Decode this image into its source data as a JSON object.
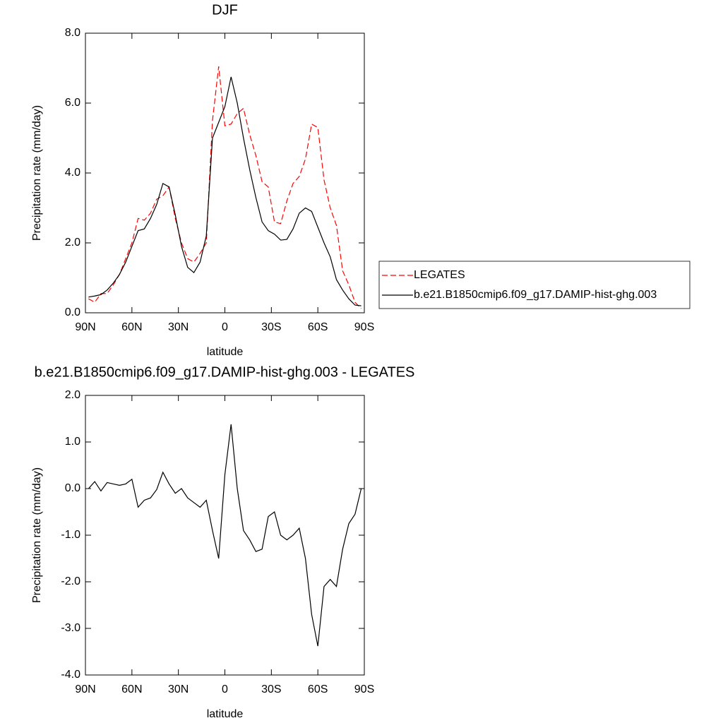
{
  "chart_data": [
    {
      "type": "line",
      "title": "DJF",
      "x_label": "latitude",
      "y_label": "Precipitation rate (mm/day)",
      "x": [
        88,
        84,
        80,
        76,
        72,
        68,
        64,
        60,
        56,
        52,
        48,
        44,
        40,
        36,
        32,
        28,
        24,
        20,
        16,
        12,
        8,
        4,
        0,
        -4,
        -8,
        -12,
        -16,
        -20,
        -24,
        -28,
        -32,
        -36,
        -40,
        -44,
        -48,
        -52,
        -56,
        -60,
        -64,
        -68,
        -72,
        -76,
        -80,
        -84,
        -88
      ],
      "xlim": [
        90,
        -90
      ],
      "xticks": [
        {
          "value": 90,
          "label": "90N"
        },
        {
          "value": 60,
          "label": "60N"
        },
        {
          "value": 30,
          "label": "30N"
        },
        0,
        {
          "value": -30,
          "label": "30S"
        },
        {
          "value": -60,
          "label": "60S"
        },
        {
          "value": -90,
          "label": "90S"
        }
      ],
      "ylim": [
        0,
        8
      ],
      "yticks": [
        {
          "value": 0,
          "label": "0.0"
        },
        {
          "value": 2,
          "label": "2.0"
        },
        {
          "value": 4,
          "label": "4.0"
        },
        {
          "value": 6,
          "label": "6.0"
        },
        {
          "value": 8,
          "label": "8.0"
        }
      ],
      "legend": "right",
      "series": [
        {
          "name": "LEGATES",
          "color": "#ff0000",
          "dash": "dashed",
          "values": [
            0.4,
            0.3,
            0.55,
            0.55,
            0.8,
            1.1,
            1.55,
            2.0,
            2.7,
            2.65,
            2.85,
            3.25,
            3.35,
            3.6,
            2.7,
            2.0,
            1.55,
            1.45,
            1.7,
            2.0,
            5.5,
            7.05,
            5.35,
            5.4,
            5.7,
            5.85,
            5.1,
            4.5,
            3.75,
            3.6,
            2.6,
            2.55,
            3.2,
            3.7,
            3.9,
            4.4,
            5.4,
            5.3,
            3.8,
            3.0,
            2.5,
            1.2,
            0.8,
            0.3,
            0.12
          ]
        },
        {
          "name": "b.e21.B1850cmip6.f09_g17.DAMIP-hist-ghg.003",
          "color": "#000000",
          "dash": "solid",
          "values": [
            0.45,
            0.48,
            0.52,
            0.65,
            0.85,
            1.1,
            1.45,
            1.9,
            2.35,
            2.4,
            2.7,
            3.1,
            3.7,
            3.6,
            2.8,
            1.9,
            1.3,
            1.15,
            1.45,
            2.2,
            5.0,
            5.45,
            5.9,
            6.75,
            6.0,
            5.0,
            4.1,
            3.3,
            2.6,
            2.35,
            2.25,
            2.08,
            2.1,
            2.4,
            2.85,
            3.0,
            2.9,
            2.45,
            2.0,
            1.6,
            0.95,
            0.65,
            0.4,
            0.22,
            0.2
          ]
        }
      ]
    },
    {
      "type": "line",
      "title": "b.e21.B1850cmip6.f09_g17.DAMIP-hist-ghg.003 - LEGATES",
      "x_label": "latitude",
      "y_label": "Precipitation rate (mm/day)",
      "x": [
        88,
        84,
        80,
        76,
        72,
        68,
        64,
        60,
        56,
        52,
        48,
        44,
        40,
        36,
        32,
        28,
        24,
        20,
        16,
        12,
        8,
        4,
        0,
        -4,
        -8,
        -12,
        -16,
        -20,
        -24,
        -28,
        -32,
        -36,
        -40,
        -44,
        -48,
        -52,
        -56,
        -60,
        -64,
        -68,
        -72,
        -76,
        -80,
        -84,
        -88
      ],
      "xlim": [
        90,
        -90
      ],
      "xticks": [
        {
          "value": 90,
          "label": "90N"
        },
        {
          "value": 60,
          "label": "60N"
        },
        {
          "value": 30,
          "label": "30N"
        },
        0,
        {
          "value": -30,
          "label": "30S"
        },
        {
          "value": -60,
          "label": "60S"
        },
        {
          "value": -90,
          "label": "90S"
        }
      ],
      "ylim": [
        -4,
        2
      ],
      "yticks": [
        {
          "value": -4,
          "label": "-4.0"
        },
        {
          "value": -3,
          "label": "-3.0"
        },
        {
          "value": -2,
          "label": "-2.0"
        },
        {
          "value": -1,
          "label": "-1.0"
        },
        {
          "value": 0,
          "label": "0.0"
        },
        {
          "value": 1,
          "label": "1.0"
        },
        {
          "value": 2,
          "label": "2.0"
        }
      ],
      "color": "#000000",
      "values": [
        0.0,
        0.15,
        -0.05,
        0.13,
        0.1,
        0.07,
        0.1,
        0.2,
        -0.4,
        -0.25,
        -0.2,
        -0.02,
        0.35,
        0.1,
        -0.1,
        0.0,
        -0.2,
        -0.3,
        -0.4,
        -0.25,
        -0.9,
        -1.5,
        0.3,
        1.38,
        0.0,
        -0.9,
        -1.1,
        -1.35,
        -1.3,
        -0.6,
        -0.5,
        -1.0,
        -1.1,
        -1.0,
        -0.85,
        -1.5,
        -2.7,
        -3.38,
        -2.1,
        -1.95,
        -2.1,
        -1.3,
        -0.75,
        -0.55,
        0.0
      ]
    }
  ]
}
